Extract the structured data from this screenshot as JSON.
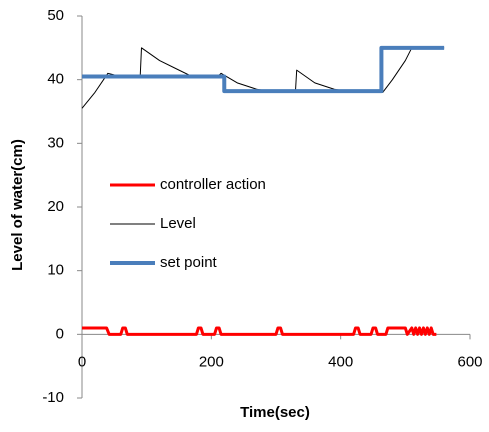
{
  "chart_data": {
    "type": "line",
    "y_label": "Level of water(cm)",
    "x_label": "Time(sec)",
    "xlim": [
      0,
      600
    ],
    "xticks": [
      0,
      200,
      400,
      600
    ],
    "ylim": [
      -10,
      50
    ],
    "yticks": [
      -10,
      0,
      10,
      20,
      30,
      40,
      50
    ],
    "grid": false,
    "legend": "left",
    "series": [
      {
        "name": "controller action",
        "color": "#ff0000",
        "width": 3,
        "x": [
          0,
          38,
          42,
          60,
          63,
          67,
          70,
          177,
          180,
          184,
          187,
          205,
          208,
          212,
          215,
          300,
          303,
          307,
          310,
          420,
          423,
          427,
          430,
          447,
          450,
          454,
          457,
          470,
          473,
          500,
          503,
          510,
          513,
          516,
          519,
          522,
          525,
          528,
          531,
          534,
          537,
          540,
          543,
          548
        ],
        "values": [
          1,
          1,
          0,
          0,
          1,
          1,
          0,
          0,
          1,
          1,
          0,
          0,
          1,
          1,
          0,
          0,
          1,
          1,
          0,
          0,
          1,
          1,
          0,
          0,
          1,
          1,
          0,
          0,
          1,
          1,
          0,
          1,
          0,
          1,
          0,
          1,
          0,
          1,
          0,
          1,
          0,
          1,
          0,
          0
        ]
      },
      {
        "name": "Level",
        "color": "#000000",
        "width": 1,
        "x": [
          0,
          20,
          40,
          60,
          90,
          92,
          120,
          150,
          170,
          210,
          215,
          240,
          270,
          300,
          330,
          332,
          360,
          390,
          420,
          465,
          480,
          500,
          510,
          530,
          560
        ],
        "values": [
          35.5,
          38,
          41,
          40.5,
          40.5,
          45,
          43,
          41.5,
          40.5,
          40.5,
          41,
          39.5,
          38.5,
          38,
          38,
          41.5,
          39.5,
          38.5,
          38,
          38,
          40,
          43,
          45,
          45,
          45
        ]
      },
      {
        "name": "set point",
        "color": "#4a7ebb",
        "width": 4,
        "x": [
          0,
          220,
          220,
          463,
          463,
          560
        ],
        "values": [
          40.5,
          40.5,
          38.2,
          38.2,
          45,
          45
        ]
      }
    ]
  }
}
